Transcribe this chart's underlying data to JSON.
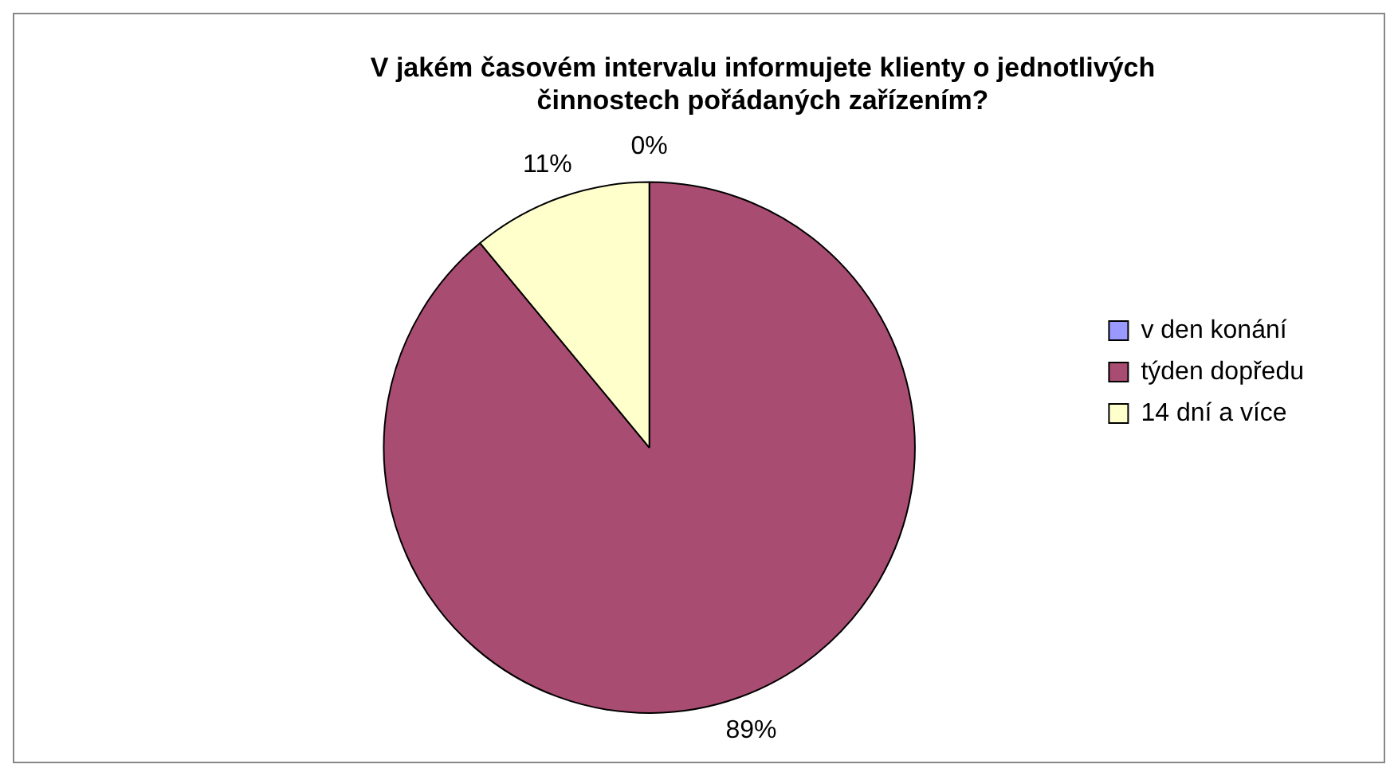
{
  "chart_data": {
    "type": "pie",
    "title": "V jakém časovém intervalu informujete klienty o jednotlivých\nčinnostech pořádaných zařízením?",
    "categories": [
      "v den konání",
      "týden dopředu",
      "14 dní a více"
    ],
    "values": [
      0,
      89,
      11
    ],
    "colors": [
      "#9999ff",
      "#a94c72",
      "#ffffcc"
    ],
    "value_labels": [
      "0%",
      "89%",
      "11%"
    ],
    "legend": "right"
  }
}
